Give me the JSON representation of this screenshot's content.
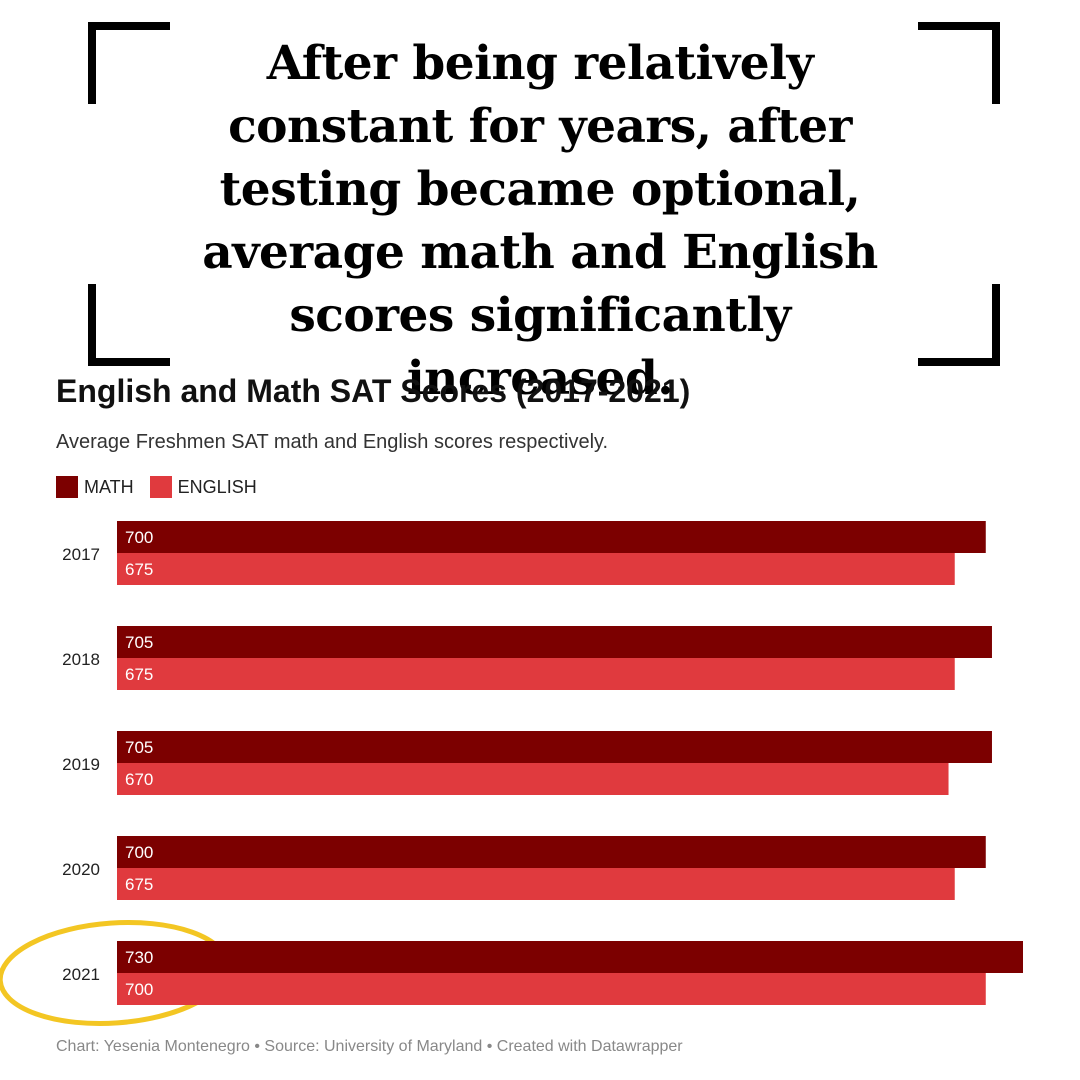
{
  "headline": "After being relatively constant for years, after testing became optional, average math and English scores significantly increased.",
  "footer": "Chart: Yesenia Montenegro • Source: University of Maryland • Created with Datawrapper",
  "colors": {
    "math": "#7c0000",
    "english": "#e03a3e",
    "highlight": "#f3c623",
    "bracket": "#000000"
  },
  "highlighted_category": "2021",
  "chart_data": {
    "type": "bar",
    "orientation": "horizontal",
    "title": "English and Math SAT Scores (2017-2021)",
    "subtitle": "Average Freshmen SAT math and English scores respectively.",
    "categories": [
      "2017",
      "2018",
      "2019",
      "2020",
      "2021"
    ],
    "series": [
      {
        "name": "MATH",
        "color": "#7c0000",
        "values": [
          700,
          705,
          705,
          700,
          730
        ]
      },
      {
        "name": "ENGLISH",
        "color": "#e03a3e",
        "values": [
          675,
          675,
          670,
          675,
          700
        ]
      }
    ],
    "xlim": [
      0,
      730
    ],
    "grid": false,
    "legend": "top-left",
    "data_labels": true
  }
}
